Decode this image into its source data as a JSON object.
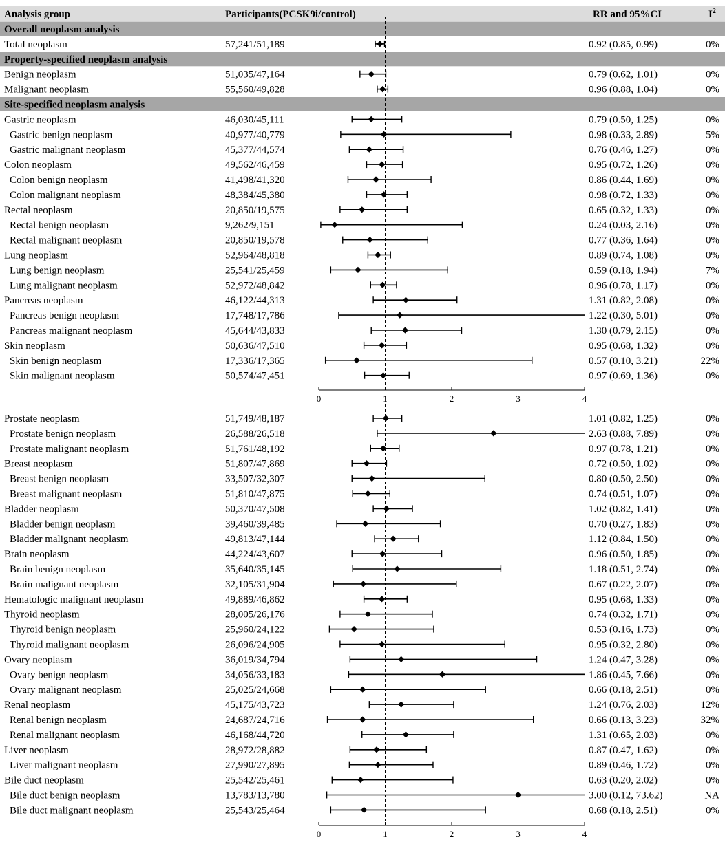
{
  "columns": {
    "group": "Analysis group",
    "participants": "Participants(PCSK9i/control)",
    "rr": "RR and 95%CI",
    "i2": "I",
    "i2_sup": "2"
  },
  "chart_data": [
    {
      "type": "forest",
      "xlim": [
        0,
        4
      ],
      "xticks": [
        0,
        1,
        2,
        3,
        4
      ],
      "reference_line": 1,
      "rows": [
        {
          "kind": "section",
          "label": "Overall neoplasm analysis"
        },
        {
          "label": "Total neoplasm",
          "indent": 0,
          "participants": "57,241/51,189",
          "rr": 0.92,
          "lo": 0.85,
          "hi": 0.99,
          "ci_text": "0.92 (0.85, 0.99)",
          "i2": "0%"
        },
        {
          "kind": "section",
          "label": "Property-specified neoplasm analysis"
        },
        {
          "label": "Benign neoplasm",
          "indent": 0,
          "participants": "51,035/47,164",
          "rr": 0.79,
          "lo": 0.62,
          "hi": 1.01,
          "ci_text": "0.79 (0.62, 1.01)",
          "i2": "0%"
        },
        {
          "label": "Malignant neoplasm",
          "indent": 0,
          "participants": "55,560/49,828",
          "rr": 0.96,
          "lo": 0.88,
          "hi": 1.04,
          "ci_text": "0.96 (0.88, 1.04)",
          "i2": "0%"
        },
        {
          "kind": "section",
          "label": "Site-specified neoplasm analysis"
        },
        {
          "label": "Gastric neoplasm",
          "indent": 0,
          "participants": "46,030/45,111",
          "rr": 0.79,
          "lo": 0.5,
          "hi": 1.25,
          "ci_text": "0.79 (0.50, 1.25)",
          "i2": "0%"
        },
        {
          "label": "Gastric benign neoplasm",
          "indent": 1,
          "participants": "40,977/40,779",
          "rr": 0.98,
          "lo": 0.33,
          "hi": 2.89,
          "ci_text": "0.98 (0.33, 2.89)",
          "i2": "5%"
        },
        {
          "label": "Gastric malignant neoplasm",
          "indent": 1,
          "participants": "45,377/44,574",
          "rr": 0.76,
          "lo": 0.46,
          "hi": 1.27,
          "ci_text": "0.76 (0.46, 1.27)",
          "i2": "0%"
        },
        {
          "label": "Colon neoplasm",
          "indent": 0,
          "participants": "49,562/46,459",
          "rr": 0.95,
          "lo": 0.72,
          "hi": 1.26,
          "ci_text": "0.95 (0.72, 1.26)",
          "i2": "0%"
        },
        {
          "label": "Colon benign neoplasm",
          "indent": 1,
          "participants": "41,498/41,320",
          "rr": 0.86,
          "lo": 0.44,
          "hi": 1.69,
          "ci_text": "0.86 (0.44, 1.69)",
          "i2": "0%"
        },
        {
          "label": "Colon malignant neoplasm",
          "indent": 1,
          "participants": "48,384/45,380",
          "rr": 0.98,
          "lo": 0.72,
          "hi": 1.33,
          "ci_text": "0.98 (0.72, 1.33)",
          "i2": "0%"
        },
        {
          "label": "Rectal neoplasm",
          "indent": 0,
          "participants": "20,850/19,575",
          "rr": 0.65,
          "lo": 0.32,
          "hi": 1.33,
          "ci_text": "0.65 (0.32, 1.33)",
          "i2": "0%"
        },
        {
          "label": "Rectal benign neoplasm",
          "indent": 1,
          "participants": "9,262/9,151",
          "rr": 0.24,
          "lo": 0.03,
          "hi": 2.16,
          "ci_text": "0.24 (0.03, 2.16)",
          "i2": "0%"
        },
        {
          "label": "Rectal malignant neoplasm",
          "indent": 1,
          "participants": "20,850/19,578",
          "rr": 0.77,
          "lo": 0.36,
          "hi": 1.64,
          "ci_text": "0.77 (0.36, 1.64)",
          "i2": "0%"
        },
        {
          "label": "Lung neoplasm",
          "indent": 0,
          "participants": "52,964/48,818",
          "rr": 0.89,
          "lo": 0.74,
          "hi": 1.08,
          "ci_text": "0.89 (0.74, 1.08)",
          "i2": "0%"
        },
        {
          "label": "Lung benign neoplasm",
          "indent": 1,
          "participants": "25,541/25,459",
          "rr": 0.59,
          "lo": 0.18,
          "hi": 1.94,
          "ci_text": "0.59 (0.18, 1.94)",
          "i2": "7%"
        },
        {
          "label": "Lung malignant neoplasm",
          "indent": 1,
          "participants": "52,972/48,842",
          "rr": 0.96,
          "lo": 0.78,
          "hi": 1.17,
          "ci_text": "0.96 (0.78, 1.17)",
          "i2": "0%"
        },
        {
          "label": "Pancreas neoplasm",
          "indent": 0,
          "participants": "46,122/44,313",
          "rr": 1.31,
          "lo": 0.82,
          "hi": 2.08,
          "ci_text": "1.31 (0.82, 2.08)",
          "i2": "0%"
        },
        {
          "label": "Pancreas benign neoplasm",
          "indent": 1,
          "participants": "17,748/17,786",
          "rr": 1.22,
          "lo": 0.3,
          "hi": 5.01,
          "ci_text": "1.22 (0.30, 5.01)",
          "i2": "0%"
        },
        {
          "label": "Pancreas malignant neoplasm",
          "indent": 1,
          "participants": "45,644/43,833",
          "rr": 1.3,
          "lo": 0.79,
          "hi": 2.15,
          "ci_text": "1.30 (0.79, 2.15)",
          "i2": "0%"
        },
        {
          "label": "Skin neoplasm",
          "indent": 0,
          "participants": "50,636/47,510",
          "rr": 0.95,
          "lo": 0.68,
          "hi": 1.32,
          "ci_text": "0.95 (0.68, 1.32)",
          "i2": "0%"
        },
        {
          "label": "Skin benign neoplasm",
          "indent": 1,
          "participants": "17,336/17,365",
          "rr": 0.57,
          "lo": 0.1,
          "hi": 3.21,
          "ci_text": "0.57 (0.10, 3.21)",
          "i2": "22%"
        },
        {
          "label": "Skin malignant neoplasm",
          "indent": 1,
          "participants": "50,574/47,451",
          "rr": 0.97,
          "lo": 0.69,
          "hi": 1.36,
          "ci_text": "0.97 (0.69, 1.36)",
          "i2": "0%"
        }
      ]
    },
    {
      "type": "forest",
      "xlim": [
        0,
        4
      ],
      "xticks": [
        0,
        1,
        2,
        3,
        4
      ],
      "reference_line": 1,
      "rows": [
        {
          "label": "Prostate neoplasm",
          "indent": 0,
          "participants": "51,749/48,187",
          "rr": 1.01,
          "lo": 0.82,
          "hi": 1.25,
          "ci_text": "1.01 (0.82, 1.25)",
          "i2": "0%"
        },
        {
          "label": "Prostate benign neoplasm",
          "indent": 1,
          "participants": "26,588/26,518",
          "rr": 2.63,
          "lo": 0.88,
          "hi": 7.89,
          "ci_text": "2.63 (0.88, 7.89)",
          "i2": "0%"
        },
        {
          "label": "Prostate malignant neoplasm",
          "indent": 1,
          "participants": "51,761/48,192",
          "rr": 0.97,
          "lo": 0.78,
          "hi": 1.21,
          "ci_text": "0.97 (0.78, 1.21)",
          "i2": "0%"
        },
        {
          "label": "Breast neoplasm",
          "indent": 0,
          "participants": "51,807/47,869",
          "rr": 0.72,
          "lo": 0.5,
          "hi": 1.02,
          "ci_text": "0.72 (0.50, 1.02)",
          "i2": "0%"
        },
        {
          "label": "Breast benign neoplasm",
          "indent": 1,
          "participants": "33,507/32,307",
          "rr": 0.8,
          "lo": 0.5,
          "hi": 2.5,
          "ci_text": "0.80 (0.50, 2.50)",
          "i2": "0%"
        },
        {
          "label": "Breast malignant neoplasm",
          "indent": 1,
          "participants": "51,810/47,875",
          "rr": 0.74,
          "lo": 0.51,
          "hi": 1.07,
          "ci_text": "0.74 (0.51, 1.07)",
          "i2": "0%"
        },
        {
          "label": "Bladder neoplasm",
          "indent": 0,
          "participants": "50,370/47,508",
          "rr": 1.02,
          "lo": 0.82,
          "hi": 1.41,
          "ci_text": "1.02 (0.82, 1.41)",
          "i2": "0%"
        },
        {
          "label": "Bladder benign neoplasm",
          "indent": 1,
          "participants": "39,460/39,485",
          "rr": 0.7,
          "lo": 0.27,
          "hi": 1.83,
          "ci_text": "0.70 (0.27, 1.83)",
          "i2": "0%"
        },
        {
          "label": "Bladder malignant neoplasm",
          "indent": 1,
          "participants": "49,813/47,144",
          "rr": 1.12,
          "lo": 0.84,
          "hi": 1.5,
          "ci_text": "1.12 (0.84, 1.50)",
          "i2": "0%"
        },
        {
          "label": "Brain neoplasm",
          "indent": 0,
          "participants": "44,224/43,607",
          "rr": 0.96,
          "lo": 0.5,
          "hi": 1.85,
          "ci_text": "0.96 (0.50, 1.85)",
          "i2": "0%"
        },
        {
          "label": "Brain benign neoplasm",
          "indent": 1,
          "participants": "35,640/35,145",
          "rr": 1.18,
          "lo": 0.51,
          "hi": 2.74,
          "ci_text": "1.18 (0.51, 2.74)",
          "i2": "0%"
        },
        {
          "label": "Brain malignant neoplasm",
          "indent": 1,
          "participants": "32,105/31,904",
          "rr": 0.67,
          "lo": 0.22,
          "hi": 2.07,
          "ci_text": "0.67 (0.22, 2.07)",
          "i2": "0%"
        },
        {
          "label": "Hematologic malignant neoplasm",
          "indent": 0,
          "participants": "49,889/46,862",
          "rr": 0.95,
          "lo": 0.68,
          "hi": 1.33,
          "ci_text": "0.95 (0.68, 1.33)",
          "i2": "0%"
        },
        {
          "label": "Thyroid neoplasm",
          "indent": 0,
          "participants": "28,005/26,176",
          "rr": 0.74,
          "lo": 0.32,
          "hi": 1.71,
          "ci_text": "0.74 (0.32, 1.71)",
          "i2": "0%"
        },
        {
          "label": "Thyroid benign neoplasm",
          "indent": 1,
          "participants": "25,960/24,122",
          "rr": 0.53,
          "lo": 0.16,
          "hi": 1.73,
          "ci_text": "0.53 (0.16, 1.73)",
          "i2": "0%"
        },
        {
          "label": "Thyroid malignant neoplasm",
          "indent": 1,
          "participants": "26,096/24,905",
          "rr": 0.95,
          "lo": 0.32,
          "hi": 2.8,
          "ci_text": "0.95 (0.32, 2.80)",
          "i2": "0%"
        },
        {
          "label": "Ovary neoplasm",
          "indent": 0,
          "participants": "36,019/34,794",
          "rr": 1.24,
          "lo": 0.47,
          "hi": 3.28,
          "ci_text": "1.24 (0.47, 3.28)",
          "i2": "0%"
        },
        {
          "label": "Ovary benign neoplasm",
          "indent": 1,
          "participants": "34,056/33,183",
          "rr": 1.86,
          "lo": 0.45,
          "hi": 7.66,
          "ci_text": "1.86 (0.45, 7.66)",
          "i2": "0%"
        },
        {
          "label": "Ovary malignant neoplasm",
          "indent": 1,
          "participants": "25,025/24,668",
          "rr": 0.66,
          "lo": 0.18,
          "hi": 2.51,
          "ci_text": "0.66 (0.18, 2.51)",
          "i2": "0%"
        },
        {
          "label": "Renal neoplasm",
          "indent": 0,
          "participants": "45,175/43,723",
          "rr": 1.24,
          "lo": 0.76,
          "hi": 2.03,
          "ci_text": "1.24 (0.76, 2.03)",
          "i2": "12%"
        },
        {
          "label": "Renal benign neoplasm",
          "indent": 1,
          "participants": "24,687/24,716",
          "rr": 0.66,
          "lo": 0.13,
          "hi": 3.23,
          "ci_text": "0.66 (0.13, 3.23)",
          "i2": "32%"
        },
        {
          "label": "Renal malignant neoplasm",
          "indent": 1,
          "participants": "46,168/44,720",
          "rr": 1.31,
          "lo": 0.65,
          "hi": 2.03,
          "ci_text": "1.31 (0.65, 2.03)",
          "i2": "0%"
        },
        {
          "label": "Liver neoplasm",
          "indent": 0,
          "participants": "28,972/28,882",
          "rr": 0.87,
          "lo": 0.47,
          "hi": 1.62,
          "ci_text": "0.87 (0.47, 1.62)",
          "i2": "0%"
        },
        {
          "label": "Liver malignant neoplasm",
          "indent": 1,
          "participants": "27,990/27,895",
          "rr": 0.89,
          "lo": 0.46,
          "hi": 1.72,
          "ci_text": "0.89 (0.46, 1.72)",
          "i2": "0%"
        },
        {
          "label": "Bile duct neoplasm",
          "indent": 0,
          "participants": "25,542/25,461",
          "rr": 0.63,
          "lo": 0.2,
          "hi": 2.02,
          "ci_text": "0.63 (0.20, 2.02)",
          "i2": "0%"
        },
        {
          "label": "Bile duct benign neoplasm",
          "indent": 1,
          "participants": "13,783/13,780",
          "rr": 3.0,
          "lo": 0.12,
          "hi": 73.62,
          "ci_text": "3.00 (0.12, 73.62)",
          "i2": "NA"
        },
        {
          "label": "Bile duct malignant neoplasm",
          "indent": 1,
          "participants": "25,543/25,464",
          "rr": 0.68,
          "lo": 0.18,
          "hi": 2.51,
          "ci_text": "0.68 (0.18, 2.51)",
          "i2": "0%"
        }
      ]
    }
  ]
}
